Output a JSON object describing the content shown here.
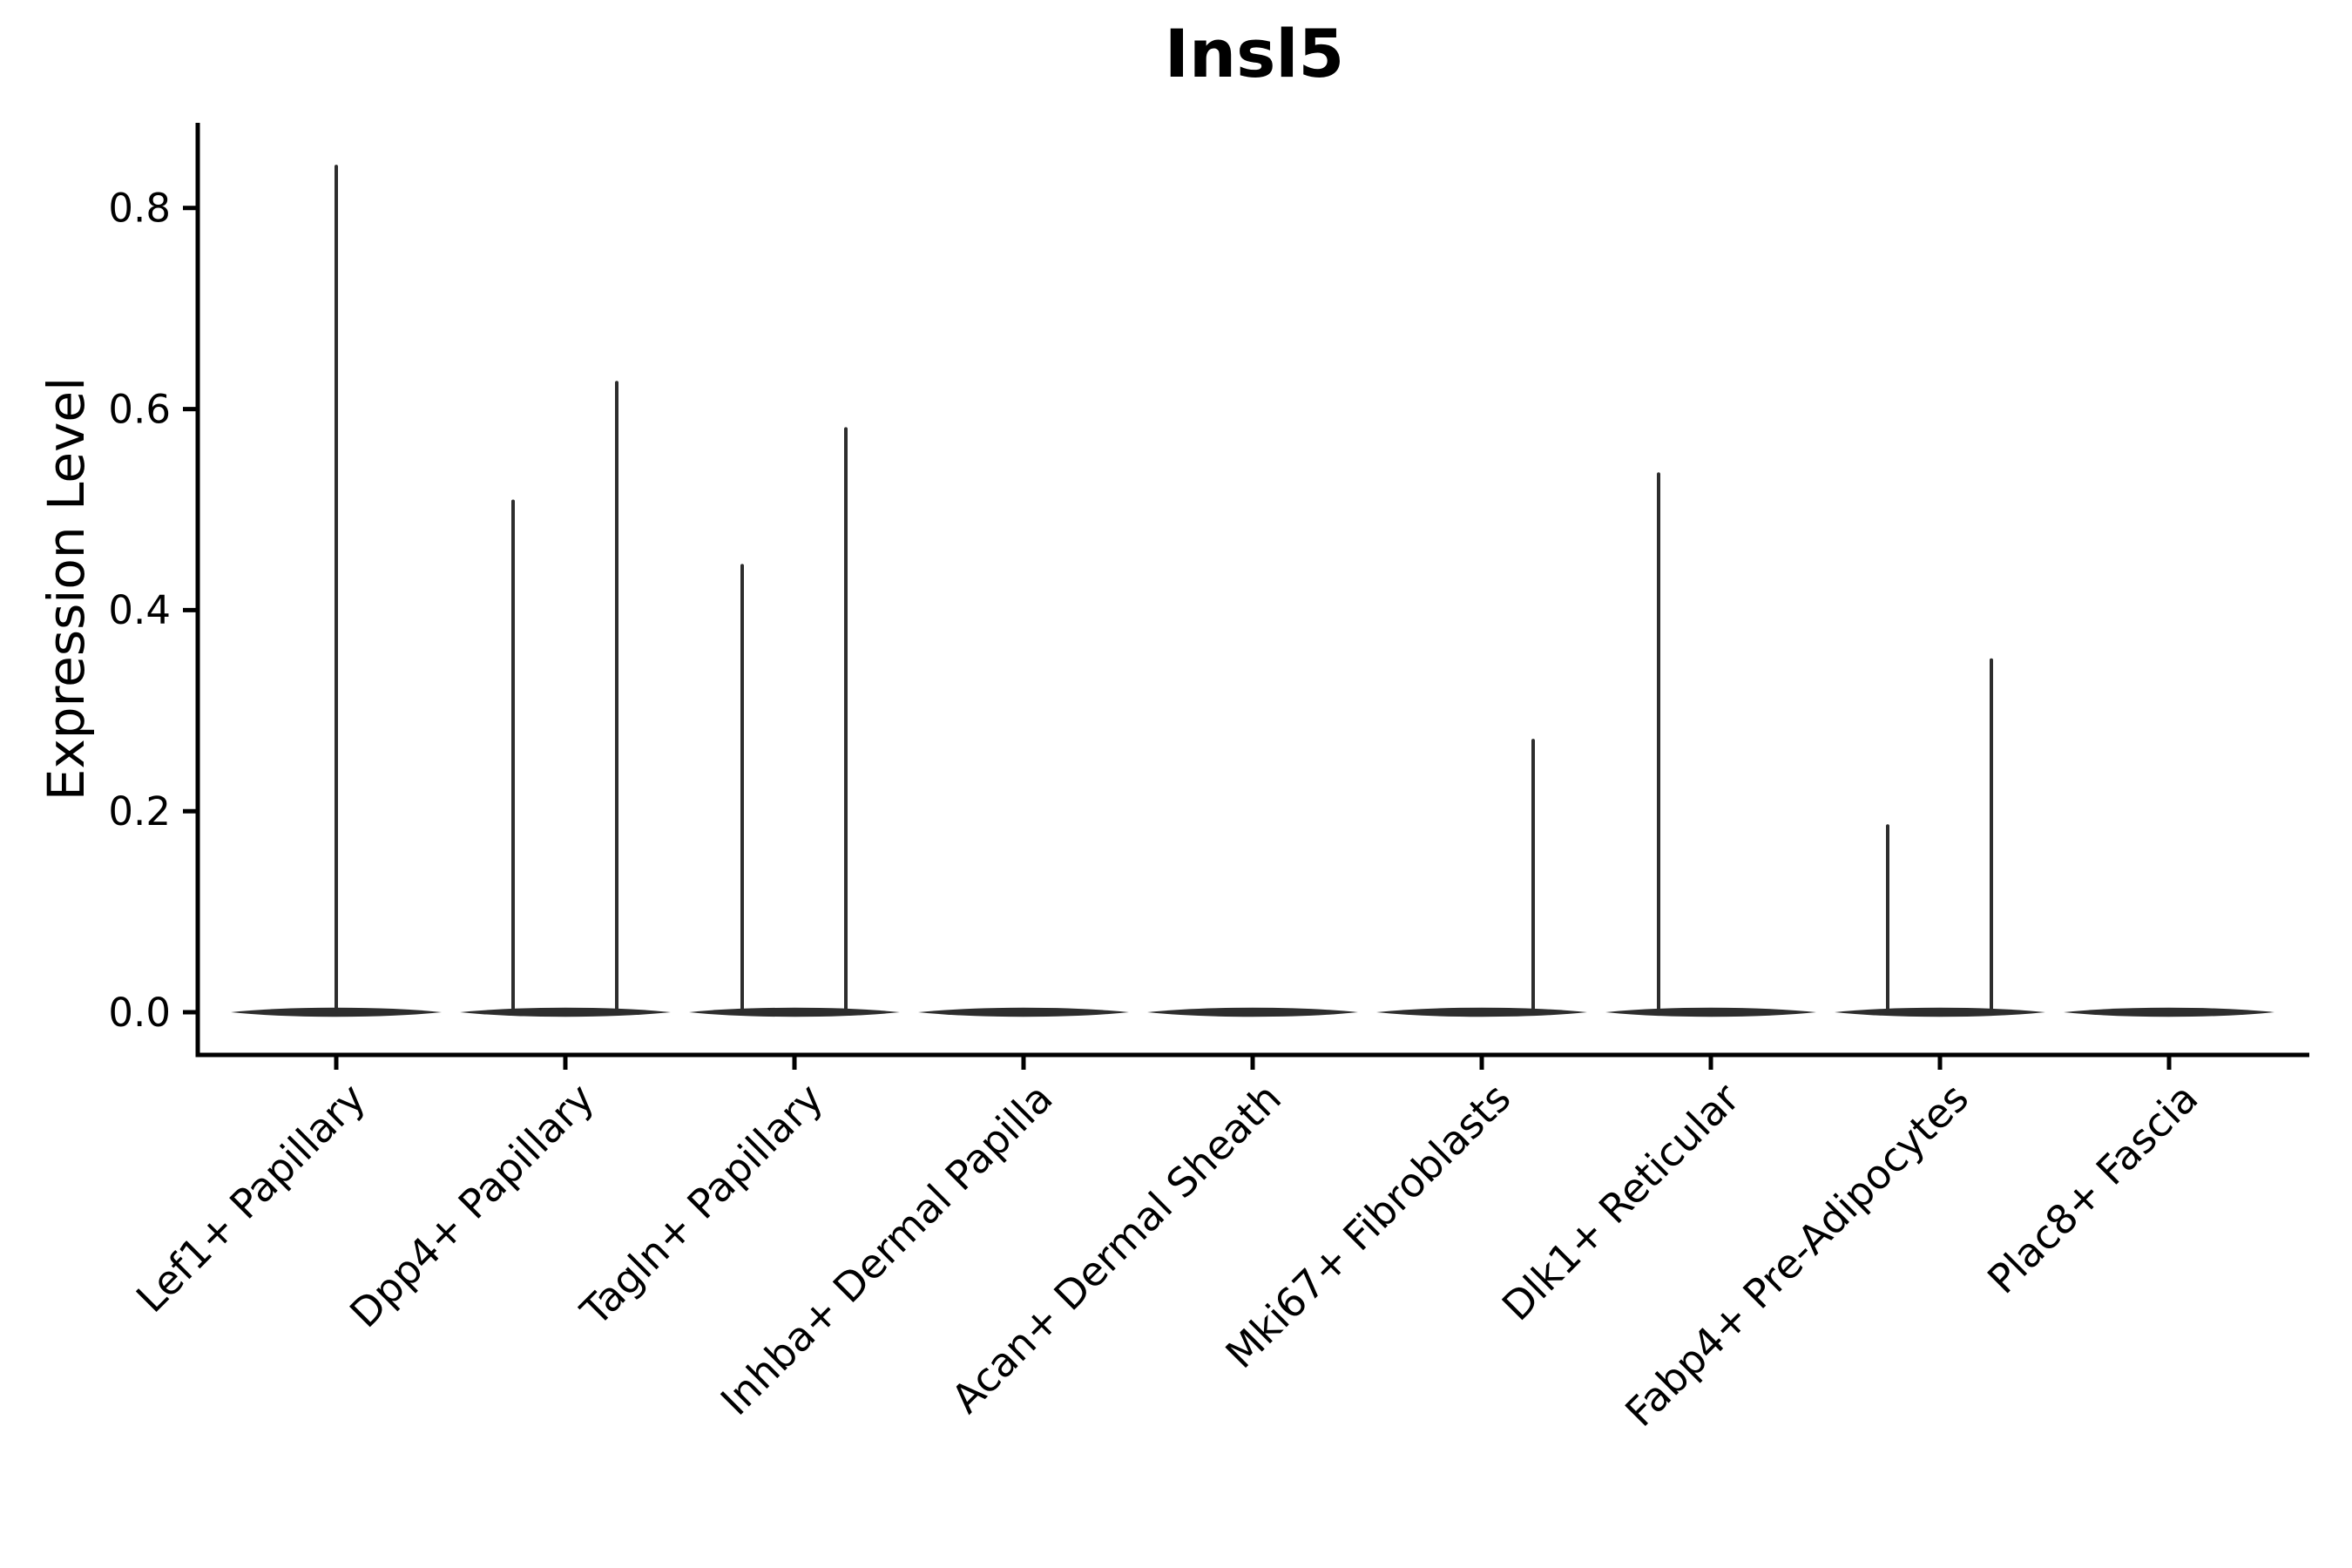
{
  "chart_data": {
    "type": "violin",
    "title": "Insl5",
    "ylabel": "Expression Level",
    "xlabel": "",
    "categories": [
      "Lef1+ Papillary",
      "Dpp4+ Papillary",
      "Tagln+ Papillary",
      "Inhba+ Dermal Papilla",
      "Acan+ Dermal Sheath",
      "Mki67+ Fibroblasts",
      "Dlk1+ Reticular",
      "Fabp4+ Pre-Adipocytes",
      "Plac8+ Fascia"
    ],
    "yticks": [
      0.0,
      0.2,
      0.4,
      0.6,
      0.8
    ],
    "ytick_labels": [
      "0.0",
      "0.2",
      "0.4",
      "0.6",
      "0.8"
    ],
    "ylim": [
      -0.042,
      0.885
    ],
    "grid": false,
    "legend": "none",
    "violin_style": "flat body at 0 expression with thin vertical density spikes for rare expressing cells",
    "violins": [
      {
        "category": "Lef1+ Papillary",
        "body_value": 0,
        "max": 0.843,
        "spikes": [
          {
            "position": "center",
            "value": 0.843
          }
        ]
      },
      {
        "category": "Dpp4+ Papillary",
        "body_value": 0,
        "max": 0.628,
        "spikes": [
          {
            "position": "left",
            "value": 0.51
          },
          {
            "position": "right",
            "value": 0.628
          }
        ]
      },
      {
        "category": "Tagln+ Papillary",
        "body_value": 0,
        "max": 0.582,
        "spikes": [
          {
            "position": "left",
            "value": 0.446
          },
          {
            "position": "right",
            "value": 0.582
          }
        ]
      },
      {
        "category": "Inhba+ Dermal Papilla",
        "body_value": 0,
        "max": 0.0,
        "spikes": []
      },
      {
        "category": "Acan+ Dermal Sheath",
        "body_value": 0,
        "max": 0.0,
        "spikes": []
      },
      {
        "category": "Mki67+ Fibroblasts",
        "body_value": 0,
        "max": 0.272,
        "spikes": [
          {
            "position": "right",
            "value": 0.272
          }
        ]
      },
      {
        "category": "Dlk1+ Reticular",
        "body_value": 0,
        "max": 0.537,
        "spikes": [
          {
            "position": "left",
            "value": 0.537
          }
        ]
      },
      {
        "category": "Fabp4+ Pre-Adipocytes",
        "body_value": 0,
        "max": 0.352,
        "spikes": [
          {
            "position": "left",
            "value": 0.187
          },
          {
            "position": "right",
            "value": 0.352
          }
        ]
      },
      {
        "category": "Plac8+ Fascia",
        "body_value": 0,
        "max": 0.0,
        "spikes": []
      }
    ],
    "colors": {
      "violin": "#2d2d2d",
      "axis": "#000000",
      "text": "#000000",
      "background": "#ffffff"
    }
  }
}
